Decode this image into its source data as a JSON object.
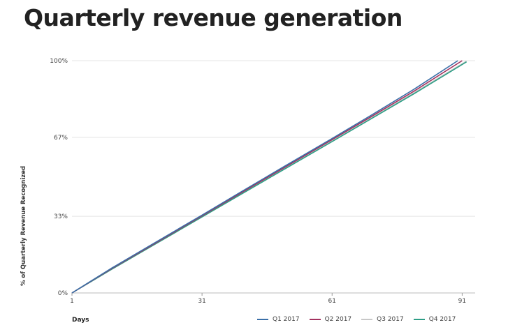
{
  "chart_data": {
    "type": "line",
    "title": "Quarterly revenue generation",
    "xlabel": "Days",
    "ylabel": "% of Quarterly Revenue Recognized",
    "x_ticks": [
      "1",
      "31",
      "61",
      "91"
    ],
    "x_tick_values": [
      1,
      31,
      61,
      91
    ],
    "y_ticks": [
      "0%",
      "33%",
      "67%",
      "100%"
    ],
    "y_tick_values": [
      0,
      33,
      67,
      100
    ],
    "xlim": [
      1,
      94
    ],
    "ylim": [
      0,
      100
    ],
    "grid": "horizontal",
    "legend_position": "bottom-right",
    "series": [
      {
        "name": "Q1 2017",
        "color": "#3a6fa8",
        "x": [
          1,
          10,
          20,
          31,
          40,
          50,
          61,
          70,
          80,
          90
        ],
        "y": [
          0,
          10.5,
          21.5,
          33.5,
          43.5,
          54.5,
          66.5,
          76.5,
          87.8,
          100
        ]
      },
      {
        "name": "Q2 2017",
        "color": "#a3325f",
        "x": [
          1,
          10,
          20,
          31,
          40,
          50,
          61,
          70,
          80,
          91
        ],
        "y": [
          0,
          10.3,
          21.2,
          33.2,
          43.1,
          54.0,
          66.0,
          75.9,
          87.0,
          100
        ]
      },
      {
        "name": "Q3 2017",
        "color": "#c8c8c8",
        "x": [
          1,
          10,
          20,
          31,
          40,
          50,
          61,
          70,
          80,
          92
        ],
        "y": [
          0,
          10.1,
          21.0,
          32.9,
          42.8,
          53.7,
          65.6,
          75.4,
          86.3,
          99.8
        ]
      },
      {
        "name": "Q4 2017",
        "color": "#2e9e86",
        "x": [
          1,
          10,
          20,
          31,
          40,
          50,
          61,
          70,
          80,
          92
        ],
        "y": [
          0,
          10.0,
          20.8,
          32.7,
          42.5,
          53.3,
          65.2,
          75.0,
          85.9,
          99.5
        ]
      }
    ]
  }
}
